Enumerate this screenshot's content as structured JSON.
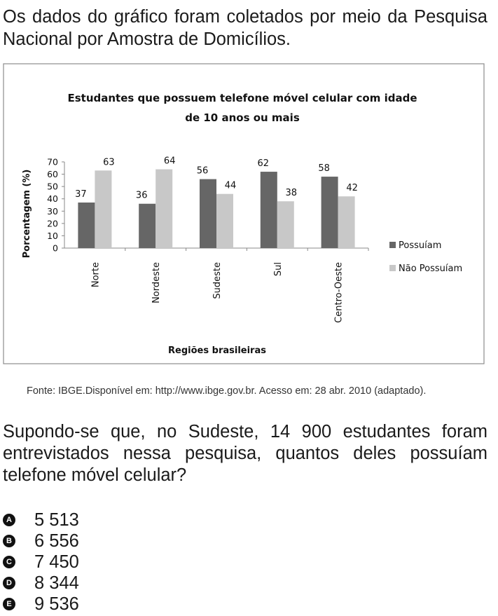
{
  "intro_text": "Os dados do gráfico foram coletados por meio da Pesquisa Nacional por Amostra de Domicílios.",
  "source_text": "Fonte: IBGE.Disponível em: http://www.ibge.gov.br. Acesso em: 28 abr. 2010 (adaptado).",
  "question_text": "Supondo-se que, no Sudeste, 14 900 estudantes foram entrevistados nessa pesquisa, quantos deles possuíam telefone móvel celular?",
  "options": [
    {
      "letter": "A",
      "text": "5 513"
    },
    {
      "letter": "B",
      "text": "6 556"
    },
    {
      "letter": "C",
      "text": "7 450"
    },
    {
      "letter": "D",
      "text": "8 344"
    },
    {
      "letter": "E",
      "text": "9 536"
    }
  ],
  "chart_data": {
    "type": "bar",
    "title_lines": [
      "Estudantes que possuem telefone móvel celular com idade",
      "de 10 anos ou mais"
    ],
    "xlabel": "Regiões brasileiras",
    "ylabel": "Porcentagem (%)",
    "ylim": [
      0,
      70
    ],
    "yticks": [
      "0",
      "10",
      "20",
      "30",
      "40",
      "50",
      "60",
      "70"
    ],
    "categories": [
      "Norte",
      "Nordeste",
      "Sudeste",
      "Sul",
      "Centro-Oeste"
    ],
    "series": [
      {
        "name": "Possuíam",
        "color": "#666666",
        "values": [
          37,
          36,
          56,
          62,
          58
        ]
      },
      {
        "name": "Não Possuíam",
        "color": "#c8c8c8",
        "values": [
          63,
          64,
          44,
          38,
          42
        ]
      }
    ],
    "legend_position": "right",
    "grid": false
  }
}
